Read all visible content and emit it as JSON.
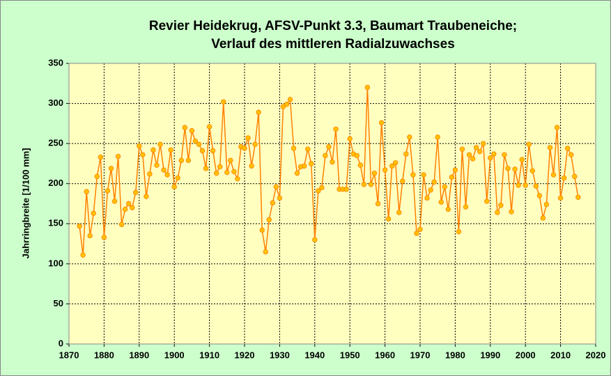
{
  "chart_data": {
    "type": "line",
    "title": [
      "Revier Heidekrug, AFSV-Punkt 3.3, Baumart Traubeneiche;",
      "Verlauf des mittleren Radialzuwachses"
    ],
    "ylabel": "Jahrringbreite [1/100 mm]",
    "x": [
      1873,
      1874,
      1875,
      1876,
      1877,
      1878,
      1879,
      1880,
      1881,
      1882,
      1883,
      1884,
      1885,
      1886,
      1887,
      1888,
      1889,
      1890,
      1891,
      1892,
      1893,
      1894,
      1895,
      1896,
      1897,
      1898,
      1899,
      1900,
      1901,
      1902,
      1903,
      1904,
      1905,
      1906,
      1907,
      1908,
      1909,
      1910,
      1911,
      1912,
      1913,
      1914,
      1915,
      1916,
      1917,
      1918,
      1919,
      1920,
      1921,
      1922,
      1923,
      1924,
      1925,
      1926,
      1927,
      1928,
      1929,
      1930,
      1931,
      1932,
      1933,
      1934,
      1935,
      1936,
      1937,
      1938,
      1939,
      1940,
      1941,
      1942,
      1943,
      1944,
      1945,
      1946,
      1947,
      1948,
      1949,
      1950,
      1951,
      1952,
      1953,
      1954,
      1955,
      1956,
      1957,
      1958,
      1959,
      1960,
      1961,
      1962,
      1963,
      1964,
      1965,
      1966,
      1967,
      1968,
      1969,
      1970,
      1971,
      1972,
      1973,
      1974,
      1975,
      1976,
      1977,
      1978,
      1979,
      1980,
      1981,
      1982,
      1983,
      1984,
      1985,
      1986,
      1987,
      1988,
      1989,
      1990,
      1991,
      1992,
      1993,
      1994,
      1995,
      1996,
      1997,
      1998,
      1999,
      2000,
      2001,
      2002,
      2003,
      2004,
      2005,
      2006,
      2007,
      2008,
      2009,
      2010,
      2011,
      2012,
      2013,
      2014,
      2015
    ],
    "series": [
      {
        "color": "#ff8000",
        "marker_color": "#ffc000",
        "values": [
          147,
          111,
          190,
          135,
          163,
          209,
          233,
          133,
          191,
          219,
          178,
          234,
          149,
          168,
          175,
          170,
          189,
          247,
          236,
          184,
          212,
          242,
          223,
          249,
          217,
          211,
          242,
          196,
          207,
          229,
          270,
          229,
          266,
          253,
          249,
          241,
          219,
          271,
          241,
          213,
          221,
          302,
          214,
          229,
          215,
          206,
          246,
          244,
          257,
          222,
          249,
          289,
          142,
          115,
          155,
          176,
          196,
          182,
          296,
          299,
          305,
          244,
          213,
          221,
          222,
          243,
          225,
          130,
          191,
          195,
          235,
          246,
          227,
          268,
          193,
          193,
          193,
          256,
          237,
          235,
          223,
          199,
          320,
          199,
          213,
          175,
          276,
          217,
          156,
          222,
          226,
          164,
          203,
          237,
          258,
          211,
          138,
          143,
          211,
          182,
          192,
          202,
          258,
          177,
          196,
          168,
          208,
          217,
          140,
          243,
          171,
          236,
          231,
          245,
          240,
          250,
          178,
          232,
          237,
          164,
          173,
          236,
          219,
          165,
          218,
          198,
          230,
          198,
          249,
          216,
          197,
          185,
          157,
          174,
          245,
          211,
          270,
          182,
          207,
          244,
          236,
          209,
          183
        ]
      }
    ],
    "xlim": [
      1870,
      2020
    ],
    "xticks": [
      1870,
      1880,
      1890,
      1900,
      1910,
      1920,
      1930,
      1940,
      1950,
      1960,
      1970,
      1980,
      1990,
      2000,
      2010,
      2020
    ],
    "ylim": [
      0,
      350
    ],
    "yticks": [
      0,
      50,
      100,
      150,
      200,
      250,
      300,
      350
    ],
    "grid": true,
    "background": "#ccffcc",
    "plot_background": "#ffffc0"
  }
}
